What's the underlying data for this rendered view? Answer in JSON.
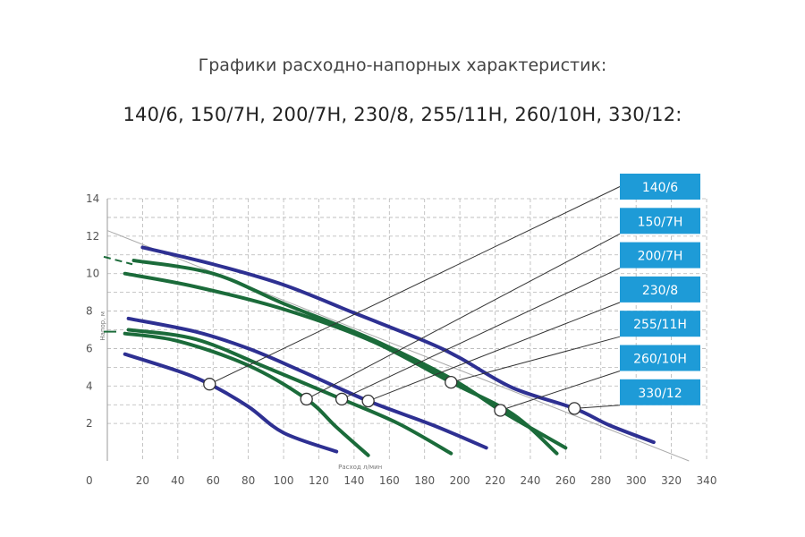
{
  "header": {
    "title": "Графики расходно-напорных характеристик:",
    "subtitle": "140/6, 150/7H, 200/7H, 230/8, 255/11H, 260/10H, 330/12:"
  },
  "colors": {
    "blue": "#2E3092",
    "green": "#1B6B3A",
    "label_bg": "#1E9BD7",
    "grid": "#b5b5b5"
  },
  "chart_data": {
    "type": "line",
    "title": "Графики расходно-напорных характеристик:",
    "xlabel": "Расход л/мин",
    "ylabel": "Напор, м",
    "xlim": [
      0,
      340
    ],
    "ylim": [
      0,
      14
    ],
    "x_ticks": [
      0,
      20,
      40,
      60,
      80,
      100,
      120,
      140,
      160,
      180,
      200,
      220,
      240,
      260,
      280,
      300,
      320,
      340
    ],
    "y_ticks": [
      2,
      4,
      6,
      8,
      10,
      12,
      14
    ],
    "grid": true,
    "legend_position": "right",
    "legend_entries": [
      "140/6",
      "150/7H",
      "200/7H",
      "230/8",
      "255/11H",
      "260/10H",
      "330/12"
    ],
    "series": [
      {
        "name": "140/6",
        "color": "blue",
        "marker": [
          58,
          4.1
        ],
        "points": [
          [
            10,
            5.7
          ],
          [
            40,
            4.8
          ],
          [
            58,
            4.1
          ],
          [
            80,
            2.9
          ],
          [
            100,
            1.5
          ],
          [
            130,
            0.5
          ]
        ]
      },
      {
        "name": "150/7H",
        "color": "green",
        "marker": [
          113,
          3.3
        ],
        "points": [
          [
            10,
            6.8
          ],
          [
            40,
            6.4
          ],
          [
            80,
            5.1
          ],
          [
            113,
            3.3
          ],
          [
            130,
            1.8
          ],
          [
            148,
            0.3
          ]
        ]
      },
      {
        "name": "200/7H",
        "color": "green",
        "marker": [
          133,
          3.3
        ],
        "points": [
          [
            12,
            7.0
          ],
          [
            50,
            6.5
          ],
          [
            90,
            5.0
          ],
          [
            133,
            3.3
          ],
          [
            165,
            2.0
          ],
          [
            195,
            0.4
          ]
        ]
      },
      {
        "name": "230/8",
        "color": "blue",
        "marker": [
          148,
          3.2
        ],
        "points": [
          [
            12,
            7.6
          ],
          [
            50,
            6.9
          ],
          [
            80,
            6.0
          ],
          [
            110,
            4.8
          ],
          [
            148,
            3.2
          ],
          [
            185,
            1.9
          ],
          [
            215,
            0.7
          ]
        ]
      },
      {
        "name": "255/11H",
        "color": "green",
        "marker": [
          195,
          4.2
        ],
        "points": [
          [
            10,
            10.0
          ],
          [
            50,
            9.3
          ],
          [
            100,
            8.1
          ],
          [
            150,
            6.4
          ],
          [
            195,
            4.2
          ],
          [
            230,
            2.5
          ],
          [
            255,
            0.4
          ]
        ]
      },
      {
        "name": "260/10H",
        "color": "green",
        "marker": [
          223,
          2.7
        ],
        "points": [
          [
            15,
            10.7
          ],
          [
            60,
            10.0
          ],
          [
            100,
            8.4
          ],
          [
            150,
            6.5
          ],
          [
            195,
            4.4
          ],
          [
            223,
            2.7
          ],
          [
            245,
            1.5
          ],
          [
            260,
            0.7
          ]
        ]
      },
      {
        "name": "330/12",
        "color": "blue",
        "marker": [
          265,
          2.8
        ],
        "points": [
          [
            20,
            11.4
          ],
          [
            60,
            10.5
          ],
          [
            100,
            9.4
          ],
          [
            140,
            7.9
          ],
          [
            180,
            6.4
          ],
          [
            200,
            5.5
          ],
          [
            230,
            3.9
          ],
          [
            265,
            2.8
          ],
          [
            285,
            1.9
          ],
          [
            310,
            1.0
          ]
        ]
      }
    ],
    "guide_line": {
      "from": [
        0,
        12.3
      ],
      "to": [
        330,
        0
      ]
    }
  }
}
